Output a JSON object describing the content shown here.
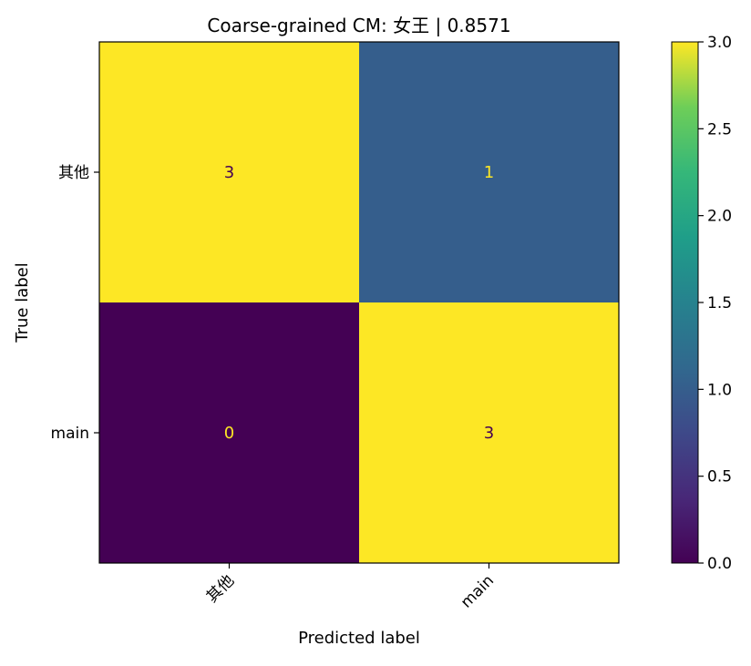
{
  "chart_data": {
    "type": "heatmap",
    "title": "Coarse-grained CM: 女王 | 0.8571",
    "xlabel": "Predicted label",
    "ylabel": "True label",
    "x_categories": [
      "其他",
      "main"
    ],
    "y_categories": [
      "其他",
      "main"
    ],
    "matrix": [
      [
        3,
        1
      ],
      [
        0,
        3
      ]
    ],
    "colorbar": {
      "min": 0.0,
      "max": 3.0,
      "ticks": [
        "0.0",
        "0.5",
        "1.0",
        "1.5",
        "2.0",
        "2.5",
        "3.0"
      ],
      "colormap": "viridis"
    },
    "colors": {
      "high": "#fde725",
      "mid": "#2c6f8e",
      "low": "#440154",
      "text_on_dark": "#fde725",
      "text_on_light": "#440154"
    }
  }
}
